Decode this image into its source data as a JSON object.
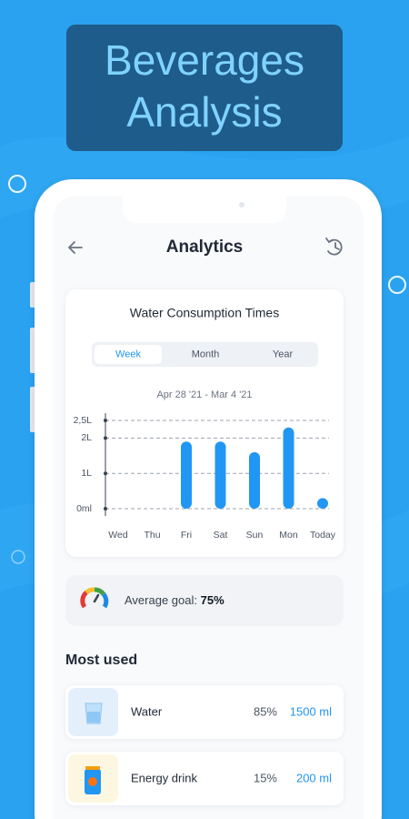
{
  "banner": {
    "title_lines": [
      "Beverages",
      "Analysis"
    ]
  },
  "header": {
    "title": "Analytics"
  },
  "chart_data": {
    "type": "bar",
    "title": "Water Consumption Times",
    "tabs": [
      "Week",
      "Month",
      "Year"
    ],
    "selected_tab": 0,
    "subtitle": "Apr 28 '21 - Mar 4 '21",
    "categories": [
      "Wed",
      "Thu",
      "Fri",
      "Sat",
      "Sun",
      "Mon",
      "Today"
    ],
    "values": [
      null,
      null,
      1.9,
      1.9,
      1.6,
      2.3,
      0.3
    ],
    "color": "#2196f3",
    "ylim": [
      0,
      2.5
    ],
    "yticks": [
      {
        "value": 0,
        "label": "0ml"
      },
      {
        "value": 1,
        "label": "1L"
      },
      {
        "value": 2,
        "label": "2L"
      },
      {
        "value": 2.5,
        "label": "2,5L"
      }
    ],
    "grid": true
  },
  "average_goal": {
    "label": "Average goal:",
    "value": "75%"
  },
  "most_used": {
    "title": "Most used",
    "items": [
      {
        "name": "Water",
        "share": "85%",
        "amount": "1500 ml"
      },
      {
        "name": "Energy drink",
        "share": "15%",
        "amount": "200 ml"
      }
    ]
  }
}
